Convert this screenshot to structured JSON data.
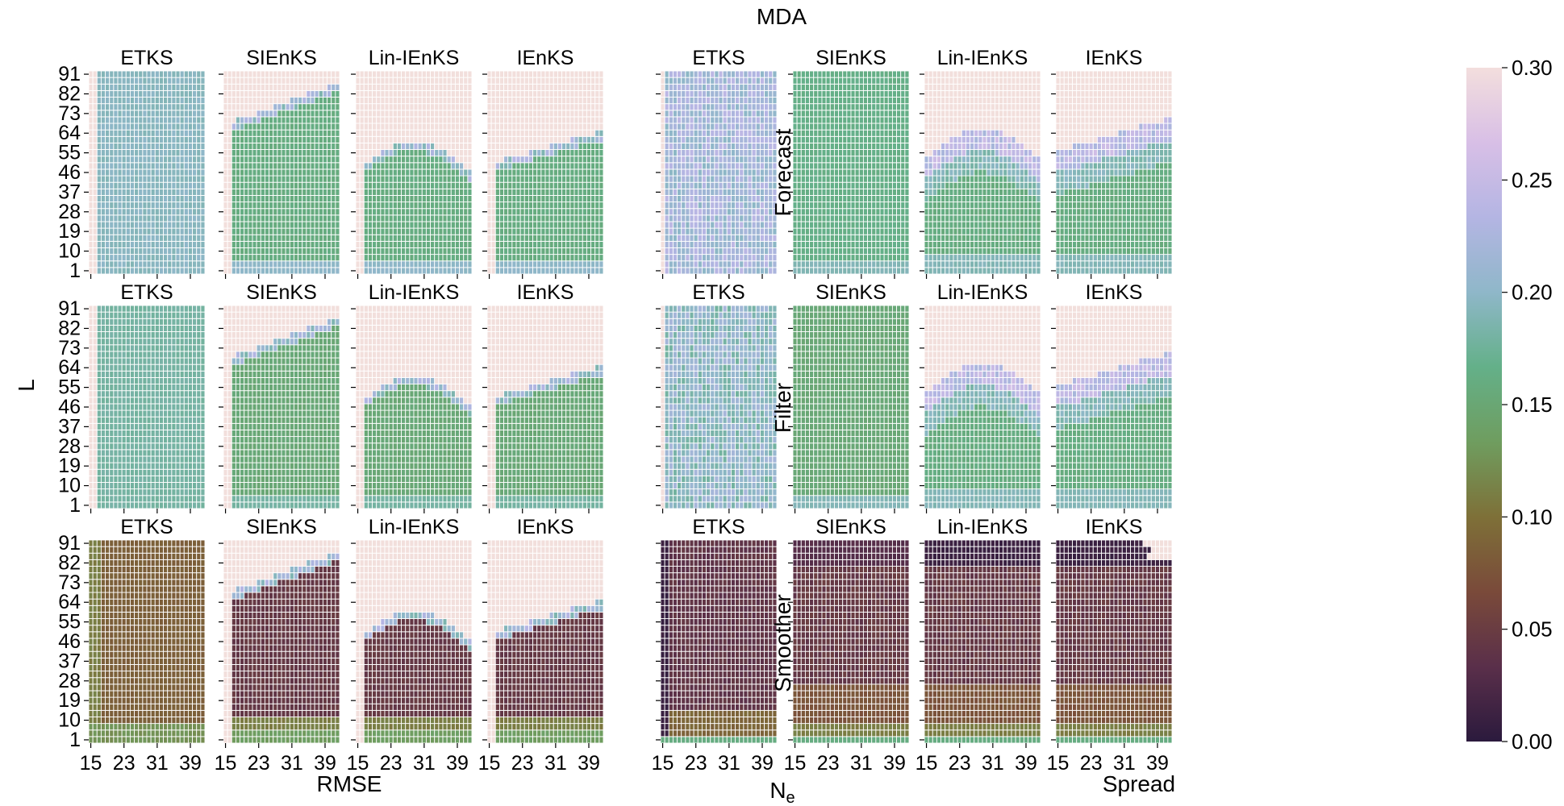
{
  "chart_data": {
    "type": "heatmap",
    "title": "MDA",
    "xlabel": "N",
    "xlabel_sub": "e",
    "ylabel": "L",
    "group_labels": [
      "RMSE",
      "Spread"
    ],
    "row_labels": [
      "Forecast",
      "Filter",
      "Smoother"
    ],
    "methods": [
      "ETKS",
      "SIEnKS",
      "Lin-IEnKS",
      "IEnKS"
    ],
    "x_tick_labels": [
      "15",
      "23",
      "31",
      "39"
    ],
    "x_ticks": [
      15,
      23,
      31,
      39
    ],
    "y_tick_labels": [
      "91",
      "82",
      "73",
      "64",
      "55",
      "46",
      "37",
      "28",
      "19",
      "10",
      "1"
    ],
    "y_ticks": [
      91,
      82,
      73,
      64,
      55,
      46,
      37,
      28,
      19,
      10,
      1
    ],
    "N_e_range": [
      15,
      42
    ],
    "lag_range": [
      1,
      91
    ],
    "colorbar": {
      "min": 0.0,
      "max": 0.3,
      "tick_values": [
        0.0,
        0.05,
        0.1,
        0.15,
        0.2,
        0.25,
        0.3
      ],
      "tick_labels": [
        "0.00",
        "0.05",
        "0.10",
        "0.15",
        "0.20",
        "0.25",
        "0.30"
      ],
      "colormap": "cubehelix",
      "stops": [
        "#2b1a3d",
        "#5a2f4a",
        "#7a4a3a",
        "#7e7038",
        "#6f9d5f",
        "#64b089",
        "#8fb7c9",
        "#b4b5e3",
        "#d8bfe6",
        "#f3dedd"
      ],
      "over_range_color": "#f2dfdc"
    },
    "panels_summary": [
      {
        "group": "RMSE",
        "row": "Forecast",
        "method": "ETKS",
        "typical_value": 0.2
      },
      {
        "group": "RMSE",
        "row": "Forecast",
        "method": "SIEnKS",
        "typical_value": 0.16,
        "divergence_threshold_lag": [
          64,
          82
        ]
      },
      {
        "group": "RMSE",
        "row": "Forecast",
        "method": "Lin-IEnKS",
        "typical_value": 0.16,
        "divergence_threshold_lag": [
          46,
          58
        ]
      },
      {
        "group": "RMSE",
        "row": "Forecast",
        "method": "IEnKS",
        "typical_value": 0.16,
        "divergence_threshold_lag": [
          46,
          64
        ]
      },
      {
        "group": "RMSE",
        "row": "Filter",
        "method": "ETKS",
        "typical_value": 0.18
      },
      {
        "group": "RMSE",
        "row": "Filter",
        "method": "SIEnKS",
        "typical_value": 0.15
      },
      {
        "group": "RMSE",
        "row": "Filter",
        "method": "Lin-IEnKS",
        "typical_value": 0.15
      },
      {
        "group": "RMSE",
        "row": "Filter",
        "method": "IEnKS",
        "typical_value": 0.15
      },
      {
        "group": "RMSE",
        "row": "Smoother",
        "method": "ETKS",
        "typical_value": 0.09
      },
      {
        "group": "RMSE",
        "row": "Smoother",
        "method": "SIEnKS",
        "typical_value": 0.05
      },
      {
        "group": "RMSE",
        "row": "Smoother",
        "method": "Lin-IEnKS",
        "typical_value": 0.05
      },
      {
        "group": "RMSE",
        "row": "Smoother",
        "method": "IEnKS",
        "typical_value": 0.05
      },
      {
        "group": "Spread",
        "row": "Forecast",
        "method": "ETKS",
        "typical_value": 0.22
      },
      {
        "group": "Spread",
        "row": "Forecast",
        "method": "SIEnKS",
        "typical_value": 0.17
      },
      {
        "group": "Spread",
        "row": "Forecast",
        "method": "Lin-IEnKS",
        "typical_value": 0.17
      },
      {
        "group": "Spread",
        "row": "Forecast",
        "method": "IEnKS",
        "typical_value": 0.18
      },
      {
        "group": "Spread",
        "row": "Filter",
        "method": "ETKS",
        "typical_value": 0.2
      },
      {
        "group": "Spread",
        "row": "Filter",
        "method": "SIEnKS",
        "typical_value": 0.15
      },
      {
        "group": "Spread",
        "row": "Filter",
        "method": "Lin-IEnKS",
        "typical_value": 0.16
      },
      {
        "group": "Spread",
        "row": "Filter",
        "method": "IEnKS",
        "typical_value": 0.16
      },
      {
        "group": "Spread",
        "row": "Smoother",
        "method": "ETKS",
        "typical_value": 0.04
      },
      {
        "group": "Spread",
        "row": "Smoother",
        "method": "SIEnKS",
        "typical_value": 0.05
      },
      {
        "group": "Spread",
        "row": "Smoother",
        "method": "Lin-IEnKS",
        "typical_value": 0.04
      },
      {
        "group": "Spread",
        "row": "Smoother",
        "method": "IEnKS",
        "typical_value": 0.04
      }
    ]
  }
}
